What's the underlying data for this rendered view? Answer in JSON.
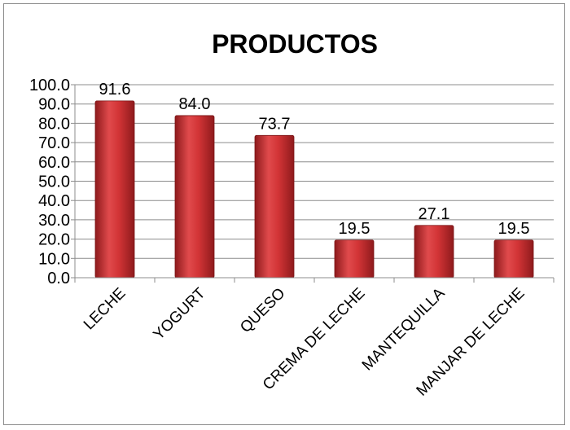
{
  "chart_data": {
    "type": "bar",
    "title": "PRODUCTOS",
    "categories": [
      "LECHE",
      "YOGURT",
      "QUESO",
      "CREMA DE LECHE",
      "MANTEQUILLA",
      "MANJAR DE LECHE"
    ],
    "values": [
      91.6,
      84.0,
      73.7,
      19.5,
      27.1,
      19.5
    ],
    "ylim": [
      0,
      100
    ],
    "yticks": [
      0,
      10,
      20,
      30,
      40,
      50,
      60,
      70,
      80,
      90,
      100
    ],
    "grid": true,
    "legend": "none",
    "bar_color": "#c0282b"
  }
}
